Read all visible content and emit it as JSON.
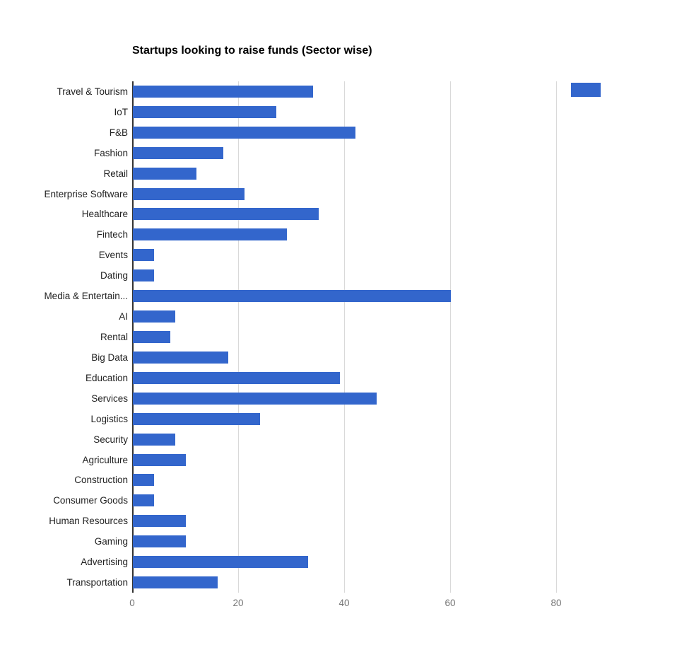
{
  "chart_data": {
    "type": "bar",
    "orientation": "horizontal",
    "title": "Startups looking to raise funds (Sector wise)",
    "categories": [
      "Travel & Tourism",
      "IoT",
      "F&B",
      "Fashion",
      "Retail",
      "Enterprise Software",
      "Healthcare",
      "Fintech",
      "Events",
      "Dating",
      "Media & Entertain...",
      "AI",
      "Rental",
      "Big Data",
      "Education",
      "Services",
      "Logistics",
      "Security",
      "Agriculture",
      "Construction",
      "Consumer Goods",
      "Human Resources",
      "Gaming",
      "Advertising",
      "Transportation"
    ],
    "values": [
      34,
      27,
      42,
      17,
      12,
      21,
      35,
      29,
      4,
      4,
      60,
      8,
      7,
      18,
      39,
      46,
      24,
      8,
      10,
      4,
      4,
      10,
      10,
      33,
      16
    ],
    "xlabel": "",
    "ylabel": "",
    "xlim": [
      0,
      100
    ],
    "xticks": [
      0,
      20,
      40,
      60,
      80
    ],
    "grid": true,
    "legend_position": "top-right"
  },
  "colors": {
    "bar": "#3366cc",
    "baseline": "#333333",
    "gridline": "#d9d9d9",
    "tick_label": "#757575",
    "category_label": "#222222",
    "title": "#000000"
  }
}
